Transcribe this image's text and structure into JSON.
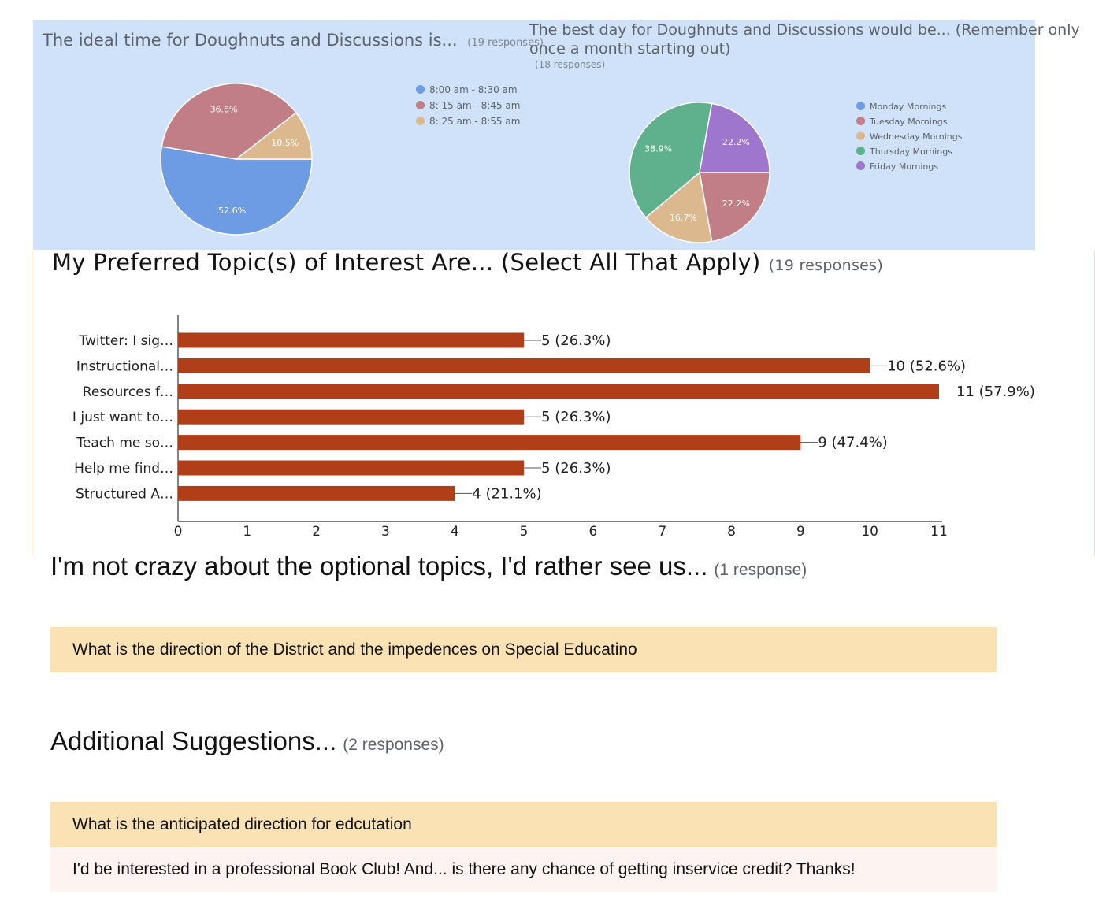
{
  "pie1": {
    "title": "The ideal time for Doughnuts and Discussions is...",
    "responses": "(19 responses)"
  },
  "pie2": {
    "title_line1": "The best day for Doughnuts and Discussions would be... (Remember only",
    "title_line2": "once a month starting out)",
    "responses": "(18 responses)"
  },
  "bar": {
    "title": "My Preferred Topic(s) of Interest Are... (Select All That Apply)",
    "responses": "(19 responses)"
  },
  "q_optional": {
    "title": "I'm not crazy about the optional topics, I'd rather see us...",
    "responses": "(1 response)",
    "answers": [
      "What is the direction of the District and the impedences on Special Educatino"
    ]
  },
  "q_suggestions": {
    "title": "Additional Suggestions...",
    "responses": "(2 responses)",
    "answers": [
      "What is the anticipated direction for edcutation",
      "I'd be interested in a professional Book Club! And... is there any chance of getting inservice credit? Thanks!"
    ]
  },
  "chart_data": [
    {
      "type": "pie",
      "title": "The ideal time for Doughnuts and Discussions is...",
      "categories": [
        "8:00 am - 8:30 am",
        "8: 15 am - 8:45 am",
        "8: 25 am - 8:55 am"
      ],
      "values": [
        52.6,
        36.8,
        10.5
      ],
      "labels": [
        "52.6%",
        "36.8%",
        "10.5%"
      ],
      "colors": [
        "#6d9be4",
        "#c17e86",
        "#dcb88e"
      ],
      "legend": "right"
    },
    {
      "type": "pie",
      "title": "The best day for Doughnuts and Discussions would be... (Remember only once a month starting out)",
      "categories": [
        "Monday Mornings",
        "Tuesday Mornings",
        "Wednesday Mornings",
        "Thursday Mornings",
        "Friday Mornings"
      ],
      "values": [
        0,
        22.2,
        16.7,
        38.9,
        22.2
      ],
      "labels": [
        "",
        "22.2%",
        "16.7%",
        "38.9%",
        "22.2%"
      ],
      "colors": [
        "#6d9be4",
        "#c17e86",
        "#dcb88e",
        "#5fb08c",
        "#9f76cd"
      ],
      "legend": "right"
    },
    {
      "type": "bar",
      "orientation": "horizontal",
      "title": "My Preferred Topic(s) of Interest Are... (Select All That Apply)",
      "categories": [
        "Twitter: I sig…",
        "Instructional…",
        "Resources f…",
        "I just want to…",
        "Teach me so…",
        "Help me find…",
        "Structured A…"
      ],
      "values": [
        5,
        10,
        11,
        5,
        9,
        5,
        4
      ],
      "data_labels": [
        "5 (26.3%)",
        "10 (52.6%)",
        "11 (57.9%)",
        "5 (26.3%)",
        "9 (47.4%)",
        "5 (26.3%)",
        "4 (21.1%)"
      ],
      "xticks": [
        "0",
        "1",
        "2",
        "3",
        "4",
        "5",
        "6",
        "7",
        "8",
        "9",
        "10",
        "11"
      ],
      "xlim": [
        0,
        11
      ],
      "color": "#b03f19",
      "grid": false
    }
  ]
}
